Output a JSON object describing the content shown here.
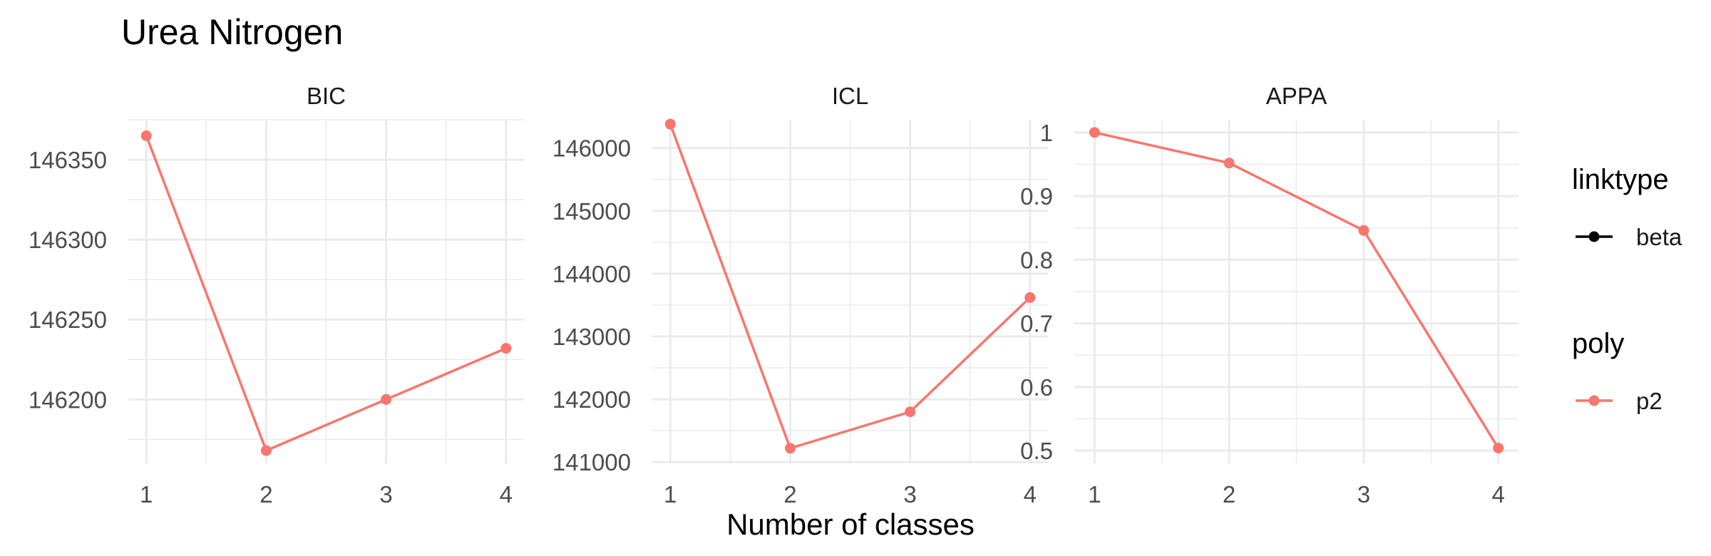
{
  "chart_data": {
    "type": "line",
    "title": "Urea Nitrogen",
    "xlabel": "Number of classes",
    "x": [
      1,
      2,
      3,
      4
    ],
    "panels": [
      {
        "name": "BIC",
        "ylim": [
          146160,
          146375
        ],
        "yticks": [
          146200,
          146250,
          146300,
          146350
        ],
        "series": [
          {
            "name": "p2",
            "values": [
              146365,
              146168,
              146200,
              146232
            ]
          }
        ]
      },
      {
        "name": "ICL",
        "ylim": [
          140980,
          146450
        ],
        "yticks": [
          141000,
          142000,
          143000,
          144000,
          145000,
          146000
        ],
        "series": [
          {
            "name": "p2",
            "values": [
              146380,
              141220,
              141800,
              143620
            ]
          }
        ]
      },
      {
        "name": "APPA",
        "ylim": [
          0.48,
          1.02
        ],
        "yticks": [
          0.5,
          0.6,
          0.7,
          0.8,
          0.9,
          1.0
        ],
        "series": [
          {
            "name": "p2",
            "values": [
              1.0,
              0.952,
              0.846,
              0.504
            ]
          }
        ]
      }
    ],
    "legend": {
      "placement": "right",
      "groups": [
        {
          "title": "linktype",
          "entries": [
            {
              "label": "beta",
              "color": "#000000"
            }
          ]
        },
        {
          "title": "poly",
          "entries": [
            {
              "label": "p2",
              "color": "#F8766D"
            }
          ]
        }
      ]
    },
    "series_color": "#F8766D",
    "grid": true
  }
}
